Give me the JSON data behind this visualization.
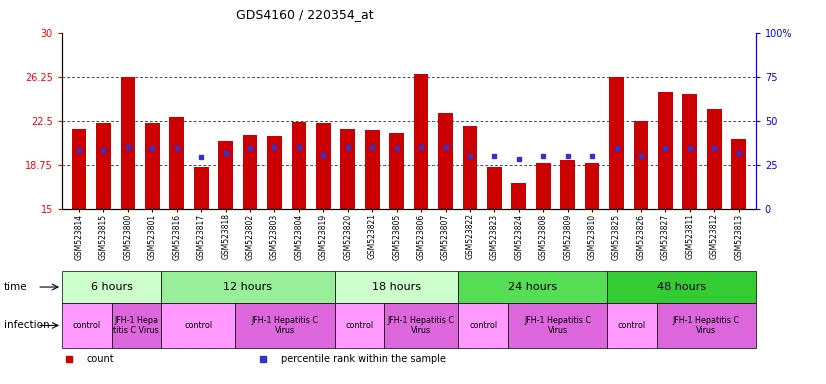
{
  "title": "GDS4160 / 220354_at",
  "gsm_labels": [
    "GSM523814",
    "GSM523815",
    "GSM523800",
    "GSM523801",
    "GSM523816",
    "GSM523817",
    "GSM523818",
    "GSM523802",
    "GSM523803",
    "GSM523804",
    "GSM523819",
    "GSM523820",
    "GSM523821",
    "GSM523805",
    "GSM523806",
    "GSM523807",
    "GSM523822",
    "GSM523823",
    "GSM523824",
    "GSM523808",
    "GSM523809",
    "GSM523810",
    "GSM523825",
    "GSM523826",
    "GSM523827",
    "GSM523811",
    "GSM523812",
    "GSM523813"
  ],
  "bar_heights": [
    21.8,
    22.3,
    26.2,
    22.3,
    22.8,
    18.6,
    20.8,
    21.3,
    21.2,
    22.4,
    22.3,
    21.8,
    21.7,
    21.5,
    26.5,
    23.2,
    22.1,
    18.6,
    17.2,
    18.9,
    19.2,
    18.9,
    26.2,
    22.5,
    25.0,
    24.8,
    23.5,
    21.0
  ],
  "blue_markers": [
    20.0,
    20.0,
    20.3,
    20.2,
    20.2,
    19.4,
    19.8,
    20.2,
    20.3,
    20.3,
    19.6,
    20.3,
    20.3,
    20.2,
    20.3,
    20.3,
    19.5,
    19.5,
    19.3,
    19.5,
    19.5,
    19.5,
    20.2,
    19.5,
    20.2,
    20.2,
    20.2,
    19.8
  ],
  "ylim_left": [
    15,
    30
  ],
  "yticks_left": [
    15,
    18.75,
    22.5,
    26.25,
    30
  ],
  "ytick_labels_left": [
    "15",
    "18.75",
    "22.5",
    "26.25",
    "30"
  ],
  "ylim_right": [
    0,
    100
  ],
  "yticks_right": [
    0,
    25,
    50,
    75,
    100
  ],
  "ytick_labels_right": [
    "0",
    "25",
    "50",
    "75",
    "100%"
  ],
  "bar_color": "#cc0000",
  "bar_baseline": 15,
  "blue_color": "#3333cc",
  "time_groups": [
    {
      "label": "6 hours",
      "start": 0,
      "end": 4,
      "color": "#ccffcc"
    },
    {
      "label": "12 hours",
      "start": 4,
      "end": 11,
      "color": "#99ee99"
    },
    {
      "label": "18 hours",
      "start": 11,
      "end": 16,
      "color": "#ccffcc"
    },
    {
      "label": "24 hours",
      "start": 16,
      "end": 22,
      "color": "#55dd55"
    },
    {
      "label": "48 hours",
      "start": 22,
      "end": 28,
      "color": "#33cc33"
    }
  ],
  "infection_groups": [
    {
      "label": "control",
      "start": 0,
      "end": 2,
      "color": "#ff99ff"
    },
    {
      "label": "JFH-1 Hepa\ntitis C Virus",
      "start": 2,
      "end": 4,
      "color": "#dd66dd"
    },
    {
      "label": "control",
      "start": 4,
      "end": 7,
      "color": "#ff99ff"
    },
    {
      "label": "JFH-1 Hepatitis C\nVirus",
      "start": 7,
      "end": 11,
      "color": "#dd66dd"
    },
    {
      "label": "control",
      "start": 11,
      "end": 13,
      "color": "#ff99ff"
    },
    {
      "label": "JFH-1 Hepatitis C\nVirus",
      "start": 13,
      "end": 16,
      "color": "#dd66dd"
    },
    {
      "label": "control",
      "start": 16,
      "end": 18,
      "color": "#ff99ff"
    },
    {
      "label": "JFH-1 Hepatitis C\nVirus",
      "start": 18,
      "end": 22,
      "color": "#dd66dd"
    },
    {
      "label": "control",
      "start": 22,
      "end": 24,
      "color": "#ff99ff"
    },
    {
      "label": "JFH-1 Hepatitis C\nVirus",
      "start": 24,
      "end": 28,
      "color": "#dd66dd"
    }
  ],
  "legend_items": [
    {
      "label": "count",
      "color": "#cc0000"
    },
    {
      "label": "percentile rank within the sample",
      "color": "#3333cc"
    }
  ],
  "fig_width": 8.26,
  "fig_height": 3.84,
  "dpi": 100
}
